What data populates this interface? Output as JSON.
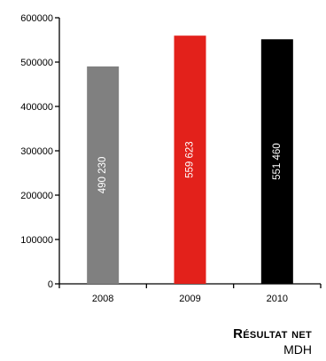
{
  "chart_data": {
    "type": "bar",
    "categories": [
      "2008",
      "2009",
      "2010"
    ],
    "values": [
      490230,
      559623,
      551460
    ],
    "value_labels": [
      "490 230",
      "559 623",
      "551 460"
    ],
    "colors": [
      "#808080",
      "#e3211b",
      "#000000"
    ],
    "ylim": [
      0,
      600000
    ],
    "yticks": [
      0,
      100000,
      200000,
      300000,
      400000,
      500000,
      600000
    ],
    "ytick_labels": [
      "0",
      "100000",
      "200000",
      "300000",
      "400000",
      "500000",
      "600000"
    ],
    "grid": false,
    "title": "Résultat net",
    "subtitle": "MDH"
  }
}
